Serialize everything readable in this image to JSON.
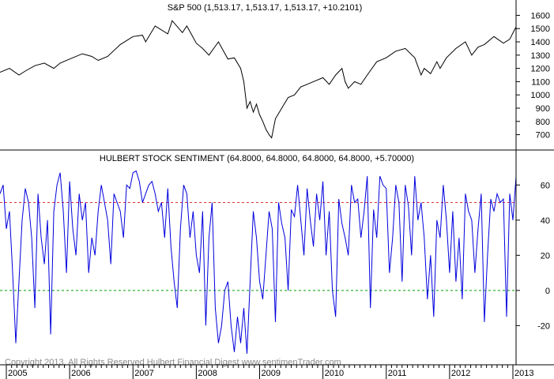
{
  "chart_data": [
    {
      "type": "line",
      "title": "S&P 500 (1,513.17, 1,513.17, 1,513.17, +10.2101)",
      "color": "#000000",
      "ylim": [
        620,
        1680
      ],
      "y_ticks": [
        700,
        800,
        900,
        1000,
        1100,
        1200,
        1300,
        1400,
        1500,
        1600
      ],
      "series": [
        {
          "x": [
            2004.9,
            2005.05,
            2005.2,
            2005.3,
            2005.45,
            2005.6,
            2005.75,
            2005.85,
            2006.0,
            2006.2,
            2006.35,
            2006.45,
            2006.6,
            2006.8,
            2007.0,
            2007.15,
            2007.2,
            2007.35,
            2007.55,
            2007.62,
            2007.78,
            2007.85,
            2008.0,
            2008.1,
            2008.2,
            2008.35,
            2008.5,
            2008.6,
            2008.7,
            2008.75,
            2008.8,
            2008.85,
            2008.9,
            2008.95,
            2009.0,
            2009.05,
            2009.1,
            2009.15,
            2009.19,
            2009.25,
            2009.35,
            2009.45,
            2009.55,
            2009.65,
            2009.75,
            2009.85,
            2010.0,
            2010.1,
            2010.2,
            2010.3,
            2010.35,
            2010.4,
            2010.5,
            2010.6,
            2010.7,
            2010.85,
            2011.0,
            2011.15,
            2011.3,
            2011.45,
            2011.55,
            2011.6,
            2011.7,
            2011.8,
            2011.85,
            2011.95,
            2012.1,
            2012.25,
            2012.35,
            2012.45,
            2012.55,
            2012.7,
            2012.85,
            2012.95,
            2013.05
          ],
          "values": [
            1170,
            1200,
            1150,
            1180,
            1220,
            1240,
            1200,
            1240,
            1270,
            1310,
            1290,
            1260,
            1290,
            1380,
            1440,
            1450,
            1400,
            1520,
            1460,
            1560,
            1470,
            1520,
            1390,
            1350,
            1300,
            1400,
            1270,
            1280,
            1200,
            1100,
            900,
            950,
            870,
            930,
            850,
            800,
            740,
            700,
            676,
            820,
            900,
            980,
            1000,
            1060,
            1080,
            1100,
            1130,
            1080,
            1150,
            1200,
            1100,
            1050,
            1100,
            1080,
            1150,
            1250,
            1280,
            1330,
            1350,
            1280,
            1150,
            1200,
            1160,
            1250,
            1200,
            1280,
            1350,
            1400,
            1300,
            1360,
            1380,
            1440,
            1390,
            1420,
            1513
          ]
        }
      ]
    },
    {
      "type": "line",
      "title": "HULBERT STOCK SENTIMENT (64.8000, 64.8000, 64.8000, 64.8000, +5.70000)",
      "color": "#0000dd",
      "ylim": [
        -36,
        70
      ],
      "y_ticks": [
        -20,
        0,
        20,
        40,
        60
      ],
      "reference_lines": [
        {
          "value": 50,
          "color": "#e03030",
          "style": "dashed"
        },
        {
          "value": 0,
          "color": "#00a000",
          "style": "dashed"
        }
      ],
      "series": [
        {
          "x": [
            2004.9,
            2004.95,
            2005.0,
            2005.05,
            2005.1,
            2005.15,
            2005.2,
            2005.25,
            2005.3,
            2005.35,
            2005.4,
            2005.45,
            2005.5,
            2005.55,
            2005.6,
            2005.65,
            2005.7,
            2005.75,
            2005.8,
            2005.85,
            2005.9,
            2005.95,
            2006.0,
            2006.05,
            2006.1,
            2006.15,
            2006.2,
            2006.25,
            2006.3,
            2006.35,
            2006.4,
            2006.45,
            2006.5,
            2006.55,
            2006.6,
            2006.65,
            2006.7,
            2006.8,
            2006.85,
            2006.9,
            2006.95,
            2007.0,
            2007.05,
            2007.1,
            2007.15,
            2007.2,
            2007.25,
            2007.3,
            2007.35,
            2007.4,
            2007.45,
            2007.5,
            2007.55,
            2007.6,
            2007.65,
            2007.7,
            2007.75,
            2007.8,
            2007.85,
            2007.9,
            2007.95,
            2008.0,
            2008.05,
            2008.1,
            2008.15,
            2008.2,
            2008.25,
            2008.3,
            2008.35,
            2008.4,
            2008.45,
            2008.5,
            2008.55,
            2008.6,
            2008.65,
            2008.7,
            2008.75,
            2008.8,
            2008.85,
            2008.9,
            2008.95,
            2009.0,
            2009.05,
            2009.1,
            2009.15,
            2009.2,
            2009.25,
            2009.3,
            2009.35,
            2009.4,
            2009.45,
            2009.5,
            2009.55,
            2009.6,
            2009.65,
            2009.7,
            2009.75,
            2009.8,
            2009.85,
            2009.9,
            2009.95,
            2010.0,
            2010.05,
            2010.1,
            2010.15,
            2010.2,
            2010.25,
            2010.3,
            2010.35,
            2010.4,
            2010.45,
            2010.5,
            2010.55,
            2010.6,
            2010.65,
            2010.7,
            2010.75,
            2010.8,
            2010.85,
            2010.9,
            2010.95,
            2011.0,
            2011.05,
            2011.1,
            2011.15,
            2011.2,
            2011.25,
            2011.3,
            2011.35,
            2011.4,
            2011.45,
            2011.5,
            2011.55,
            2011.6,
            2011.65,
            2011.7,
            2011.75,
            2011.8,
            2011.85,
            2011.9,
            2011.95,
            2012.0,
            2012.05,
            2012.1,
            2012.15,
            2012.2,
            2012.25,
            2012.3,
            2012.35,
            2012.4,
            2012.45,
            2012.5,
            2012.55,
            2012.6,
            2012.65,
            2012.7,
            2012.75,
            2012.8,
            2012.85,
            2012.9,
            2012.95,
            2013.0,
            2013.05
          ],
          "values": [
            55,
            60,
            35,
            45,
            10,
            -30,
            5,
            40,
            58,
            50,
            30,
            -10,
            55,
            30,
            15,
            40,
            -25,
            45,
            60,
            67,
            45,
            10,
            62,
            35,
            20,
            55,
            40,
            50,
            10,
            30,
            20,
            45,
            60,
            50,
            40,
            15,
            55,
            45,
            30,
            60,
            58,
            67,
            68,
            62,
            50,
            55,
            60,
            62,
            55,
            45,
            50,
            30,
            58,
            25,
            5,
            -10,
            35,
            60,
            55,
            30,
            45,
            20,
            10,
            45,
            -20,
            30,
            50,
            -10,
            -30,
            -20,
            0,
            5,
            -20,
            -35,
            -15,
            -30,
            -10,
            -36,
            5,
            45,
            30,
            5,
            -5,
            20,
            45,
            35,
            -18,
            50,
            38,
            30,
            0,
            46,
            42,
            60,
            40,
            20,
            58,
            40,
            25,
            55,
            40,
            62,
            20,
            45,
            0,
            -15,
            52,
            38,
            30,
            20,
            60,
            50,
            52,
            30,
            45,
            65,
            -10,
            46,
            30,
            65,
            60,
            58,
            10,
            30,
            60,
            50,
            5,
            60,
            48,
            20,
            65,
            40,
            50,
            30,
            -5,
            20,
            -15,
            40,
            30,
            60,
            40,
            10,
            45,
            5,
            30,
            -5,
            55,
            45,
            40,
            10,
            35,
            55,
            -18,
            20,
            52,
            45,
            55,
            50,
            52,
            -15,
            55,
            40,
            64.8
          ],
          "note_range": ""
        }
      ]
    }
  ],
  "x_axis": {
    "years": [
      "2005",
      "2006",
      "2007",
      "2008",
      "2009",
      "2010",
      "2011",
      "2012",
      "2013"
    ]
  },
  "copyright": "Copyright 2013, All Rights Reserved  Hulbert Financial Digest  www.sentimenTrader.com"
}
